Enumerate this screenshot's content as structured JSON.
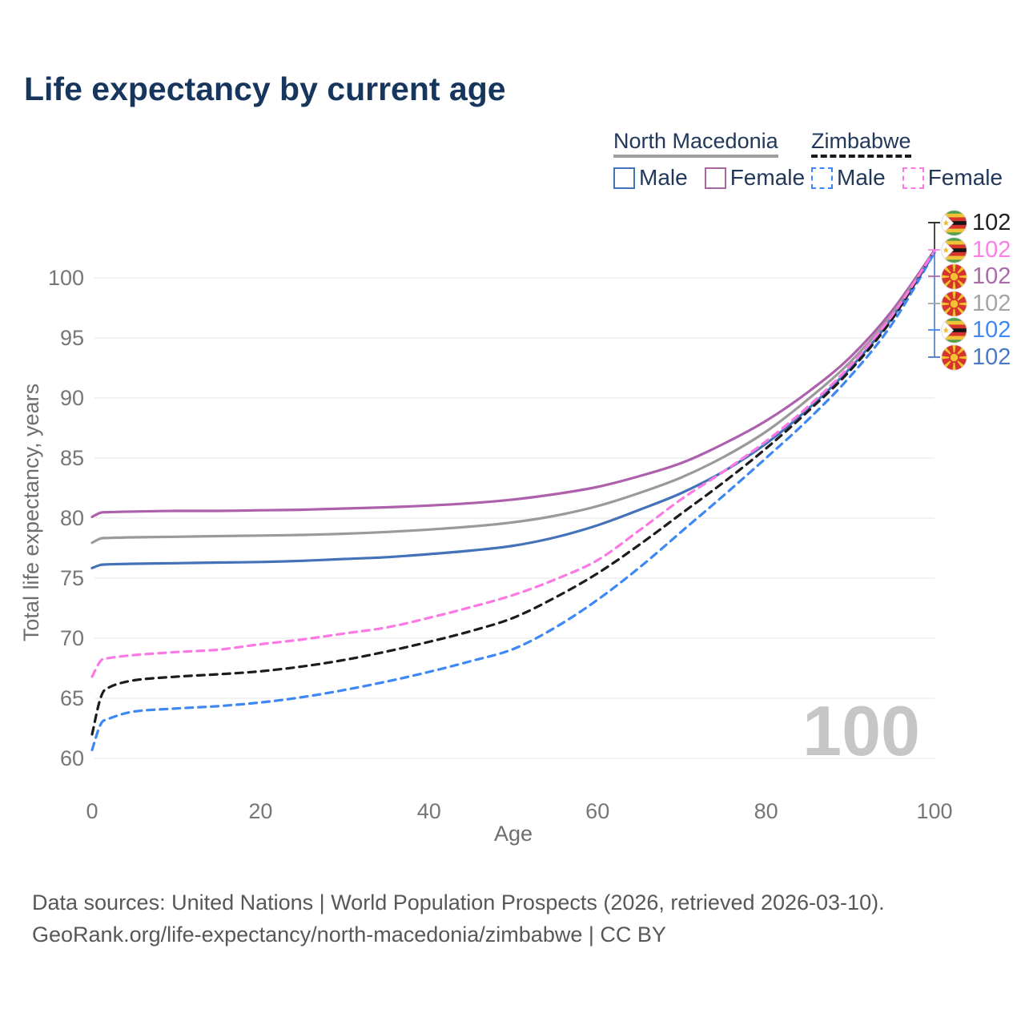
{
  "title": "Life expectancy by current age",
  "watermark": "100",
  "legend": {
    "groups": [
      {
        "label": "North Macedonia",
        "line_style": "solid",
        "line_color": "#9e9e9e",
        "items": [
          {
            "label": "Male",
            "color": "#4472b9",
            "style": "solid"
          },
          {
            "label": "Female",
            "color": "#a4689e",
            "style": "solid"
          }
        ]
      },
      {
        "label": "Zimbabwe",
        "line_style": "dashed",
        "line_color": "#1a1a1a",
        "items": [
          {
            "label": "Male",
            "color": "#3d88f5",
            "style": "dashed"
          },
          {
            "label": "Female",
            "color": "#fb79e3",
            "style": "dashed"
          }
        ]
      }
    ]
  },
  "chart_data": {
    "type": "line",
    "title": "Life expectancy by current age",
    "xlabel": "Age",
    "ylabel": "Total life expectancy, years",
    "xlim": [
      0,
      100
    ],
    "ylim": [
      60,
      103
    ],
    "x_ticks": [
      0,
      20,
      40,
      60,
      80,
      100
    ],
    "y_ticks": [
      60,
      65,
      70,
      75,
      80,
      85,
      90,
      95,
      100
    ],
    "grid": "horizontal",
    "legend_position": "top-right",
    "x": [
      0,
      1,
      2,
      5,
      10,
      15,
      20,
      25,
      30,
      35,
      40,
      45,
      50,
      55,
      60,
      65,
      70,
      75,
      80,
      85,
      90,
      95,
      100
    ],
    "series": [
      {
        "name": "North Macedonia Female",
        "country": "North Macedonia",
        "sex": "Female",
        "color": "#ad60ab",
        "dash": "solid",
        "values": [
          80.1,
          80.45,
          80.5,
          80.55,
          80.6,
          80.6,
          80.65,
          80.7,
          80.8,
          80.9,
          81.05,
          81.25,
          81.55,
          82.0,
          82.6,
          83.5,
          84.6,
          86.2,
          88.1,
          90.5,
          93.4,
          97.3,
          102.3
        ]
      },
      {
        "name": "North Macedonia",
        "country": "North Macedonia",
        "sex": "Both",
        "color": "#9a9a9a",
        "dash": "solid",
        "values": [
          77.95,
          78.3,
          78.35,
          78.4,
          78.45,
          78.5,
          78.55,
          78.6,
          78.7,
          78.85,
          79.05,
          79.3,
          79.65,
          80.2,
          81.0,
          82.1,
          83.4,
          85.1,
          87.2,
          89.9,
          93.0,
          97.0,
          102.2
        ]
      },
      {
        "name": "North Macedonia Male",
        "country": "North Macedonia",
        "sex": "Male",
        "color": "#4472b9",
        "dash": "solid",
        "values": [
          75.85,
          76.1,
          76.15,
          76.2,
          76.25,
          76.3,
          76.35,
          76.45,
          76.6,
          76.75,
          77.0,
          77.3,
          77.7,
          78.4,
          79.4,
          80.7,
          82.1,
          83.9,
          86.2,
          89.1,
          92.5,
          96.7,
          102.1
        ]
      },
      {
        "name": "Zimbabwe Male",
        "country": "Zimbabwe",
        "sex": "Male",
        "color": "#3d88f5",
        "dash": "dashed",
        "values": [
          60.7,
          62.8,
          63.3,
          63.9,
          64.15,
          64.35,
          64.65,
          65.1,
          65.7,
          66.4,
          67.2,
          68.1,
          69.1,
          70.9,
          73.2,
          75.9,
          78.9,
          81.9,
          85.0,
          88.2,
          91.8,
          96.2,
          102.1
        ]
      },
      {
        "name": "Zimbabwe",
        "country": "Zimbabwe",
        "sex": "Both",
        "color": "#1c1c1c",
        "dash": "dashed",
        "values": [
          62.0,
          65.0,
          65.9,
          66.5,
          66.8,
          67.0,
          67.25,
          67.65,
          68.2,
          68.9,
          69.7,
          70.6,
          71.7,
          73.4,
          75.4,
          77.8,
          80.4,
          83.0,
          85.8,
          88.9,
          92.3,
          96.6,
          102.3
        ]
      },
      {
        "name": "Zimbabwe Female",
        "country": "Zimbabwe",
        "sex": "Female",
        "color": "#fb79e3",
        "dash": "dashed",
        "values": [
          66.8,
          68.1,
          68.35,
          68.6,
          68.85,
          69.05,
          69.5,
          69.9,
          70.4,
          70.9,
          71.7,
          72.6,
          73.6,
          74.9,
          76.5,
          79.0,
          81.6,
          83.9,
          86.4,
          89.3,
          92.7,
          96.9,
          102.25
        ]
      }
    ]
  },
  "endpoint_labels": {
    "rows": [
      {
        "flag": "zimbabwe",
        "label": "102",
        "color": "#1f1f1f",
        "series": "Zimbabwe"
      },
      {
        "flag": "zimbabwe",
        "label": "102",
        "color": "#fc7fe6",
        "series": "Zimbabwe Female"
      },
      {
        "flag": "north-macedonia",
        "label": "102",
        "color": "#a96ca9",
        "series": "North Macedonia Female"
      },
      {
        "flag": "north-macedonia",
        "label": "102",
        "color": "#a5a5a5",
        "series": "North Macedonia"
      },
      {
        "flag": "zimbabwe",
        "label": "102",
        "color": "#4089f2",
        "series": "Zimbabwe Male"
      },
      {
        "flag": "north-macedonia",
        "label": "102",
        "color": "#4a79c5",
        "series": "North Macedonia Male"
      }
    ]
  },
  "footer": {
    "line1": "Data sources: United Nations | World Population Prospects (2026, retrieved 2026-03-10).",
    "line2": "GeoRank.org/life-expectancy/north-macedonia/zimbabwe | CC BY"
  }
}
